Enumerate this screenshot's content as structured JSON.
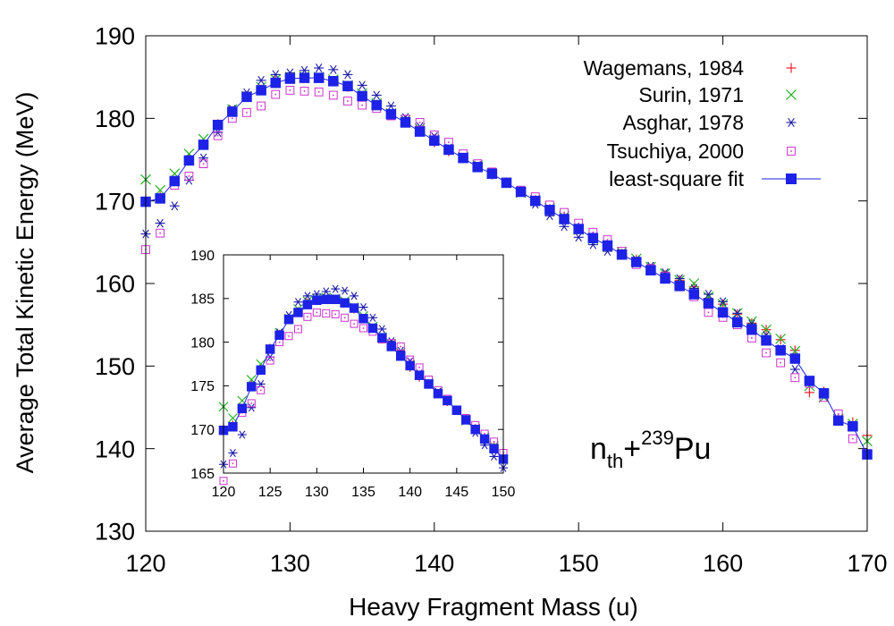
{
  "chart_data": [
    {
      "type": "scatter",
      "title": "",
      "xlabel": "Heavy Fragment Mass (u)",
      "ylabel": "Average Total Kinetic Energy (MeV)",
      "xlim": [
        120,
        170
      ],
      "ylim": [
        130,
        190
      ],
      "xticks": [
        "120",
        "130",
        "140",
        "150",
        "160",
        "170"
      ],
      "yticks": [
        "130",
        "140",
        "150",
        "160",
        "170",
        "180",
        "190"
      ],
      "annotation": {
        "base": "n",
        "sub": "th",
        "plus": "+",
        "sup": "239",
        "element": "Pu"
      },
      "legend_position": "top-right",
      "grid": false,
      "series": [
        {
          "name": "Wagemans, 1984",
          "marker": "plus",
          "color": "#e8202a",
          "x": [
            120,
            121,
            122,
            123,
            124,
            125,
            126,
            127,
            128,
            129,
            130,
            131,
            132,
            133,
            134,
            135,
            136,
            137,
            138,
            139,
            140,
            141,
            142,
            143,
            144,
            145,
            146,
            147,
            148,
            149,
            150,
            151,
            152,
            153,
            154,
            155,
            156,
            157,
            158,
            159,
            160,
            161,
            162,
            163,
            164,
            165,
            166,
            167,
            168,
            169,
            170
          ],
          "y": [
            170.2,
            170.5,
            172.4,
            175.2,
            176.9,
            179.3,
            180.9,
            182.7,
            183.5,
            184.5,
            184.8,
            184.9,
            184.9,
            184.5,
            183.8,
            182.7,
            181.6,
            180.4,
            179.7,
            178.4,
            177.1,
            176.0,
            175.2,
            174.1,
            173.2,
            172.2,
            171.2,
            170.1,
            169.0,
            168.1,
            166.6,
            165.6,
            164.6,
            163.6,
            162.9,
            161.8,
            161.0,
            160.4,
            159.6,
            158.2,
            157.5,
            156.3,
            155.2,
            154.4,
            153.2,
            151.9,
            146.8,
            146.9,
            143.7,
            143.2,
            141.6
          ]
        },
        {
          "name": "Surin, 1971",
          "marker": "x",
          "color": "#22b222",
          "x": [
            120,
            121,
            122,
            123,
            124,
            125,
            126,
            127,
            128,
            129,
            130,
            131,
            132,
            133,
            134,
            135,
            136,
            137,
            138,
            139,
            140,
            141,
            142,
            143,
            144,
            145,
            146,
            147,
            148,
            149,
            150,
            151,
            152,
            153,
            154,
            155,
            156,
            157,
            158,
            159,
            160,
            161,
            162,
            163,
            164,
            165,
            166,
            167,
            168,
            169,
            170
          ],
          "y": [
            172.6,
            171.3,
            173.3,
            175.7,
            177.5,
            179.2,
            181.1,
            182.7,
            183.8,
            184.7,
            185.0,
            185.1,
            185.0,
            184.7,
            184.0,
            183.0,
            181.8,
            180.6,
            179.8,
            178.8,
            177.4,
            176.2,
            175.3,
            174.3,
            173.3,
            172.2,
            171.0,
            170.1,
            169.1,
            168.1,
            166.5,
            165.4,
            164.5,
            163.8,
            163.0,
            162.0,
            161.2,
            160.4,
            160.0,
            158.4,
            157.5,
            156.4,
            155.4,
            154.4,
            153.3,
            151.8,
            147.6,
            146.2,
            143.6,
            143.0,
            140.9
          ]
        },
        {
          "name": "Asghar, 1978",
          "marker": "asterisk",
          "color": "#1a1aa8",
          "x": [
            120,
            121,
            122,
            123,
            124,
            125,
            126,
            127,
            128,
            129,
            130,
            131,
            132,
            133,
            134,
            135,
            136,
            137,
            138,
            139,
            140,
            141,
            142,
            143,
            144,
            145,
            146,
            147,
            148,
            149,
            150,
            151,
            152,
            153,
            154,
            155,
            156,
            157,
            158,
            159,
            160,
            161,
            162,
            163,
            164,
            165
          ],
          "y": [
            166.0,
            167.3,
            169.4,
            172.5,
            175.2,
            178.3,
            181.1,
            183.1,
            184.6,
            185.3,
            185.5,
            185.8,
            186.1,
            185.9,
            185.3,
            184.0,
            182.8,
            181.5,
            180.1,
            179.0,
            177.8,
            176.4,
            175.3,
            174.3,
            173.4,
            172.2,
            171.0,
            169.6,
            168.2,
            166.9,
            165.6,
            164.7,
            163.9,
            163.5,
            162.8,
            162.1,
            161.3,
            160.6,
            159.4,
            158.7,
            157.8,
            156.4,
            155.1,
            153.7,
            152.1,
            149.6
          ]
        },
        {
          "name": "Tsuchiya, 2000",
          "marker": "square-open",
          "color": "#cc33cc",
          "x": [
            120,
            121,
            122,
            123,
            124,
            125,
            126,
            127,
            128,
            129,
            130,
            131,
            132,
            133,
            134,
            135,
            136,
            137,
            138,
            139,
            140,
            141,
            142,
            143,
            144,
            145,
            146,
            147,
            148,
            149,
            150,
            151,
            152,
            153,
            154,
            155,
            156,
            157,
            158,
            159,
            160,
            161,
            162,
            163,
            164,
            165,
            166,
            167,
            168,
            169,
            170
          ],
          "y": [
            164.1,
            166.1,
            171.9,
            173.0,
            174.5,
            177.9,
            180.0,
            180.7,
            181.5,
            182.9,
            183.4,
            183.3,
            183.2,
            182.8,
            182.1,
            181.6,
            181.2,
            180.3,
            179.9,
            179.5,
            178.0,
            177.1,
            175.7,
            174.5,
            173.5,
            172.2,
            171.3,
            170.5,
            169.5,
            168.6,
            167.3,
            166.2,
            165.3,
            163.9,
            162.3,
            161.8,
            160.9,
            159.6,
            158.4,
            156.5,
            155.9,
            155.0,
            153.4,
            151.6,
            150.4,
            148.6,
            147.9,
            146.2,
            144.2,
            141.2,
            139.4
          ]
        },
        {
          "name": "least-square fit",
          "marker": "square-filled",
          "color": "#1d22e6",
          "line": true,
          "x": [
            120,
            121,
            122,
            123,
            124,
            125,
            126,
            127,
            128,
            129,
            130,
            131,
            132,
            133,
            134,
            135,
            136,
            137,
            138,
            139,
            140,
            141,
            142,
            143,
            144,
            145,
            146,
            147,
            148,
            149,
            150,
            151,
            152,
            153,
            154,
            155,
            156,
            157,
            158,
            159,
            160,
            161,
            162,
            163,
            164,
            165,
            166,
            167,
            168,
            169,
            170
          ],
          "y": [
            169.9,
            170.3,
            172.4,
            174.9,
            176.8,
            179.2,
            180.8,
            182.6,
            183.4,
            184.3,
            184.8,
            184.9,
            184.9,
            184.5,
            183.9,
            182.7,
            181.6,
            180.5,
            179.5,
            178.4,
            177.3,
            176.2,
            175.2,
            174.1,
            173.3,
            172.2,
            171.1,
            170.0,
            168.9,
            167.8,
            166.6,
            165.5,
            164.6,
            163.5,
            162.6,
            161.6,
            160.6,
            159.7,
            158.7,
            157.6,
            156.5,
            155.3,
            154.4,
            153.1,
            151.9,
            150.9,
            148.2,
            146.7,
            143.4,
            142.7,
            139.3
          ]
        }
      ]
    },
    {
      "type": "scatter",
      "title": "",
      "xlabel": "",
      "ylabel": "",
      "xlim": [
        120,
        150
      ],
      "ylim": [
        165,
        190
      ],
      "xticks": [
        "120",
        "125",
        "130",
        "135",
        "140",
        "145",
        "150"
      ],
      "yticks": [
        "165",
        "170",
        "175",
        "180",
        "185",
        "190"
      ],
      "grid": false,
      "series": [
        {
          "name": "",
          "marker": "plus",
          "color": "#e8202a",
          "x": [
            120,
            121,
            122,
            123,
            124,
            125,
            126,
            127,
            128,
            129,
            130,
            131,
            132,
            133,
            134,
            135,
            136,
            137,
            138,
            139,
            140,
            141,
            142,
            143,
            144,
            145,
            146,
            147,
            148,
            149,
            150
          ],
          "y": [
            170.2,
            170.5,
            172.4,
            175.2,
            176.9,
            179.3,
            180.9,
            182.7,
            183.5,
            184.5,
            184.8,
            184.9,
            184.9,
            184.5,
            183.8,
            182.7,
            181.6,
            180.4,
            179.7,
            178.4,
            177.1,
            176.0,
            175.2,
            174.1,
            173.2,
            172.2,
            171.2,
            170.1,
            169.0,
            168.1,
            166.6
          ]
        },
        {
          "name": "",
          "marker": "x",
          "color": "#22b222",
          "x": [
            120,
            121,
            122,
            123,
            124,
            125,
            126,
            127,
            128,
            129,
            130,
            131,
            132,
            133,
            134,
            135,
            136,
            137,
            138,
            139,
            140,
            141,
            142,
            143,
            144,
            145,
            146,
            147,
            148,
            149,
            150
          ],
          "y": [
            172.6,
            171.3,
            173.3,
            175.7,
            177.5,
            179.2,
            181.1,
            182.7,
            183.8,
            184.7,
            185.0,
            185.1,
            185.0,
            184.7,
            184.0,
            183.0,
            181.8,
            180.6,
            179.8,
            178.8,
            177.4,
            176.2,
            175.3,
            174.3,
            173.3,
            172.2,
            171.0,
            170.1,
            169.1,
            168.1,
            166.5
          ]
        },
        {
          "name": "",
          "marker": "asterisk",
          "color": "#1a1aa8",
          "x": [
            120,
            121,
            122,
            123,
            124,
            125,
            126,
            127,
            128,
            129,
            130,
            131,
            132,
            133,
            134,
            135,
            136,
            137,
            138,
            139,
            140,
            141,
            142,
            143,
            144,
            145,
            146,
            147,
            148,
            149,
            150
          ],
          "y": [
            166.0,
            167.3,
            169.4,
            172.5,
            175.2,
            178.3,
            181.1,
            183.1,
            184.6,
            185.3,
            185.5,
            185.8,
            186.1,
            185.9,
            185.3,
            184.0,
            182.8,
            181.5,
            180.1,
            179.0,
            177.8,
            176.4,
            175.3,
            174.3,
            173.4,
            172.2,
            171.0,
            169.6,
            168.2,
            166.9,
            165.6
          ]
        },
        {
          "name": "",
          "marker": "square-open",
          "color": "#cc33cc",
          "x": [
            120,
            121,
            122,
            123,
            124,
            125,
            126,
            127,
            128,
            129,
            130,
            131,
            132,
            133,
            134,
            135,
            136,
            137,
            138,
            139,
            140,
            141,
            142,
            143,
            144,
            145,
            146,
            147,
            148,
            149,
            150
          ],
          "y": [
            164.1,
            166.1,
            171.9,
            173.0,
            174.5,
            177.9,
            180.0,
            180.7,
            181.5,
            182.9,
            183.4,
            183.3,
            183.2,
            182.8,
            182.1,
            181.6,
            181.2,
            180.3,
            179.9,
            179.5,
            178.0,
            177.1,
            175.7,
            174.5,
            173.5,
            172.2,
            171.3,
            170.5,
            169.5,
            168.6,
            167.3
          ]
        },
        {
          "name": "",
          "marker": "square-filled",
          "color": "#1d22e6",
          "line": true,
          "x": [
            120,
            121,
            122,
            123,
            124,
            125,
            126,
            127,
            128,
            129,
            130,
            131,
            132,
            133,
            134,
            135,
            136,
            137,
            138,
            139,
            140,
            141,
            142,
            143,
            144,
            145,
            146,
            147,
            148,
            149,
            150
          ],
          "y": [
            169.9,
            170.3,
            172.4,
            174.9,
            176.8,
            179.2,
            180.8,
            182.6,
            183.4,
            184.3,
            184.8,
            184.9,
            184.9,
            184.5,
            183.9,
            182.7,
            181.6,
            180.5,
            179.5,
            178.4,
            177.3,
            176.2,
            175.2,
            174.1,
            173.3,
            172.2,
            171.1,
            170.0,
            168.9,
            167.8,
            166.6
          ]
        }
      ]
    }
  ]
}
